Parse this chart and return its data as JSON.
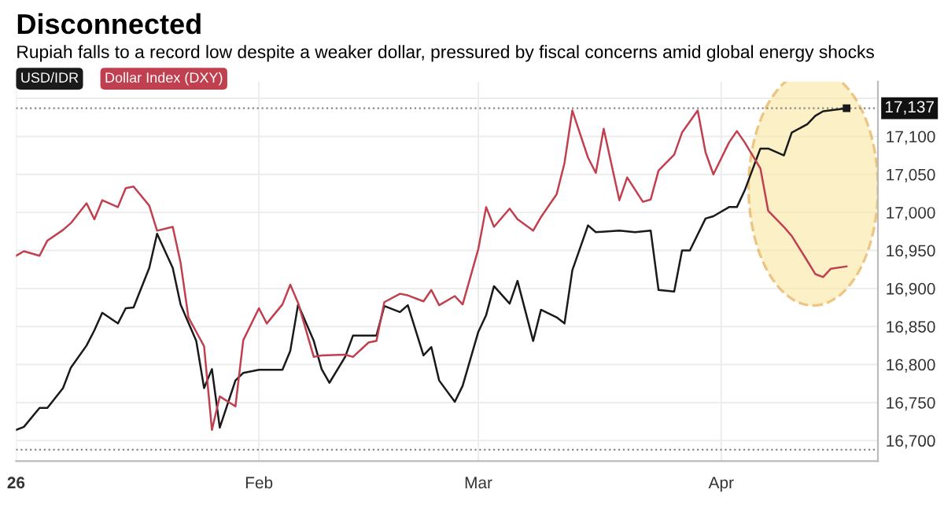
{
  "chart_data": {
    "type": "line",
    "title": "Disconnected",
    "subtitle": "Rupiah falls to a record low despite a weaker dollar, pressured by fiscal concerns amid global energy shocks",
    "series": [
      {
        "name": "USD/IDR",
        "color": "#1a1a1a",
        "x": [
          "2026-01-01",
          "2026-01-02",
          "2026-01-04",
          "2026-01-05",
          "2026-01-07",
          "2026-01-08",
          "2026-01-10",
          "2026-01-11",
          "2026-01-12",
          "2026-01-14",
          "2026-01-15",
          "2026-01-16",
          "2026-01-18",
          "2026-01-19",
          "2026-01-21",
          "2026-01-22",
          "2026-01-24",
          "2026-01-25",
          "2026-01-26",
          "2026-01-27",
          "2026-01-29",
          "2026-01-30",
          "2026-02-01",
          "2026-02-04",
          "2026-02-05",
          "2026-02-06",
          "2026-02-08",
          "2026-02-09",
          "2026-02-10",
          "2026-02-12",
          "2026-02-13",
          "2026-02-16",
          "2026-02-17",
          "2026-02-19",
          "2026-02-20",
          "2026-02-22",
          "2026-02-23",
          "2026-02-24",
          "2026-02-26",
          "2026-02-27",
          "2026-03-01",
          "2026-03-02",
          "2026-03-03",
          "2026-03-05",
          "2026-03-06",
          "2026-03-08",
          "2026-03-09",
          "2026-03-11",
          "2026-03-12",
          "2026-03-13",
          "2026-03-15",
          "2026-03-16",
          "2026-03-19",
          "2026-03-21",
          "2026-03-23",
          "2026-03-24",
          "2026-03-26",
          "2026-03-27",
          "2026-03-28",
          "2026-03-30",
          "2026-03-31",
          "2026-04-02",
          "2026-04-03",
          "2026-04-04",
          "2026-04-06",
          "2026-04-07",
          "2026-04-09",
          "2026-04-10",
          "2026-04-12",
          "2026-04-13",
          "2026-04-14",
          "2026-04-17"
        ],
        "values": [
          16714,
          16718,
          16743,
          16743,
          16769,
          16796,
          16825,
          16845,
          16868,
          16854,
          16874,
          16875,
          16927,
          16972,
          16927,
          16879,
          16831,
          16769,
          16794,
          16717,
          16779,
          16789,
          16793,
          16793,
          16818,
          16879,
          16831,
          16794,
          16776,
          16810,
          16838,
          16838,
          16877,
          16869,
          16878,
          16812,
          16823,
          16779,
          16751,
          16772,
          16843,
          16865,
          16903,
          16880,
          16910,
          16831,
          16872,
          16862,
          16854,
          16924,
          16983,
          16974,
          16976,
          16974,
          16976,
          16898,
          16896,
          16950,
          16950,
          16992,
          16995,
          17007,
          17007,
          17029,
          17084,
          17084,
          17075,
          17105,
          17116,
          17127,
          17133,
          17137
        ]
      },
      {
        "name": "Dollar Index (DXY)",
        "color": "#c0404f",
        "x": [
          "2026-01-01",
          "2026-01-02",
          "2026-01-04",
          "2026-01-05",
          "2026-01-07",
          "2026-01-08",
          "2026-01-10",
          "2026-01-11",
          "2026-01-12",
          "2026-01-14",
          "2026-01-15",
          "2026-01-16",
          "2026-01-18",
          "2026-01-19",
          "2026-01-21",
          "2026-01-22",
          "2026-01-23",
          "2026-01-25",
          "2026-01-26",
          "2026-01-27",
          "2026-01-29",
          "2026-01-30",
          "2026-02-01",
          "2026-02-02",
          "2026-02-04",
          "2026-02-05",
          "2026-02-06",
          "2026-02-08",
          "2026-02-09",
          "2026-02-12",
          "2026-02-13",
          "2026-02-15",
          "2026-02-16",
          "2026-02-17",
          "2026-02-19",
          "2026-02-20",
          "2026-02-22",
          "2026-02-23",
          "2026-02-24",
          "2026-02-26",
          "2026-02-27",
          "2026-03-01",
          "2026-03-02",
          "2026-03-03",
          "2026-03-05",
          "2026-03-06",
          "2026-03-08",
          "2026-03-09",
          "2026-03-11",
          "2026-03-12",
          "2026-03-13",
          "2026-03-15",
          "2026-03-16",
          "2026-03-17",
          "2026-03-19",
          "2026-03-20",
          "2026-03-22",
          "2026-03-23",
          "2026-03-24",
          "2026-03-26",
          "2026-03-27",
          "2026-03-29",
          "2026-03-30",
          "2026-03-31",
          "2026-04-02",
          "2026-04-03",
          "2026-04-04",
          "2026-04-06",
          "2026-04-07",
          "2026-04-09",
          "2026-04-10",
          "2026-04-12",
          "2026-04-13",
          "2026-04-14",
          "2026-04-15",
          "2026-04-17"
        ],
        "values": [
          16943,
          16949,
          16943,
          16963,
          16977,
          16986,
          17012,
          16991,
          17016,
          17007,
          17032,
          17034,
          17009,
          16976,
          16981,
          16934,
          16862,
          16824,
          16714,
          16758,
          16745,
          16832,
          16874,
          16854,
          16879,
          16905,
          16881,
          16810,
          16812,
          16813,
          16810,
          16829,
          16831,
          16882,
          16893,
          16891,
          16883,
          16898,
          16878,
          16890,
          16879,
          16952,
          17007,
          16981,
          17005,
          16991,
          16976,
          16994,
          17024,
          17065,
          17134,
          17072,
          17052,
          17110,
          17016,
          17046,
          17014,
          17017,
          17055,
          17076,
          17105,
          17134,
          17079,
          17050,
          17092,
          17107,
          17092,
          17058,
          17002,
          16981,
          16969,
          16936,
          16919,
          16915,
          16926,
          16929
        ]
      }
    ],
    "xlim": [
      "2026-01-01",
      "2026-04-21"
    ],
    "xticks": [
      {
        "value": "2026-01-01",
        "label": "26"
      },
      {
        "value": "2026-02-01",
        "label": "Feb"
      },
      {
        "value": "2026-03-01",
        "label": "Mar"
      },
      {
        "value": "2026-04-01",
        "label": "Apr"
      }
    ],
    "ylim": [
      16673,
      17172
    ],
    "yticks": [
      {
        "value": 16700,
        "label": "16,700"
      },
      {
        "value": 16750,
        "label": "16,750"
      },
      {
        "value": 16800,
        "label": "16,800"
      },
      {
        "value": 16850,
        "label": "16,850"
      },
      {
        "value": 16900,
        "label": "16,900"
      },
      {
        "value": 16950,
        "label": "16,950"
      },
      {
        "value": 17000,
        "label": "17,000"
      },
      {
        "value": 17050,
        "label": "17,050"
      },
      {
        "value": 17100,
        "label": "17,100"
      },
      {
        "value": 17150,
        "label": null
      }
    ],
    "ref_lines": [
      {
        "axis": "y",
        "value": 17137,
        "color": "#888888",
        "line_style": "dotted"
      },
      {
        "axis": "y",
        "value": 16688,
        "color": "#888888",
        "line_style": "dotted"
      }
    ],
    "annotations": [
      {
        "text": "17,137",
        "x": "2026-04-17",
        "y": 17137
      }
    ],
    "grid": true,
    "legend": "top left",
    "marker": "none",
    "line_style": "solid"
  }
}
